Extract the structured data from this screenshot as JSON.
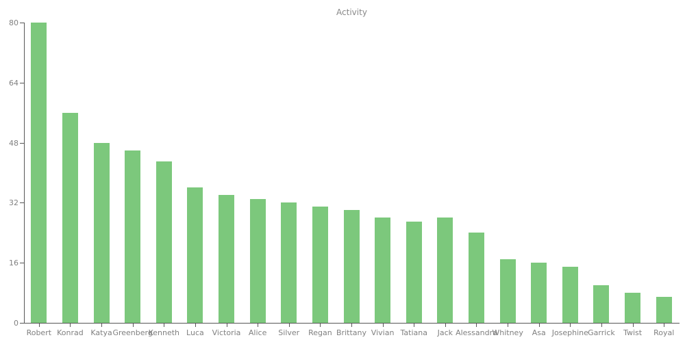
{
  "chart": {
    "title_label": "Activity"
  },
  "colors": {
    "bar": "#7cc87c",
    "axis": "#555555",
    "tick_label": "#808080",
    "title": "#888888",
    "background": "#ffffff"
  },
  "chart_data": {
    "type": "bar",
    "title": "Activity",
    "xlabel": "",
    "ylabel": "",
    "categories": [
      "Robert",
      "Konrad",
      "Katya",
      "Greenberg",
      "Kenneth",
      "Luca",
      "Victoria",
      "Alice",
      "Silver",
      "Regan",
      "Brittany",
      "Vivian",
      "Tatiana",
      "Jack",
      "Alessandra",
      "Whitney",
      "Asa",
      "Josephine",
      "Garrick",
      "Twist",
      "Royal"
    ],
    "values": [
      80,
      56,
      48,
      46,
      43,
      36,
      34,
      33,
      32,
      31,
      30,
      28,
      27,
      28,
      24,
      17,
      16,
      15,
      10,
      8,
      7
    ],
    "ylim": [
      0,
      80
    ],
    "yticks": [
      0,
      16,
      32,
      48,
      64,
      80
    ],
    "grid": false,
    "legend": false,
    "bar_color": "#7cc87c"
  }
}
